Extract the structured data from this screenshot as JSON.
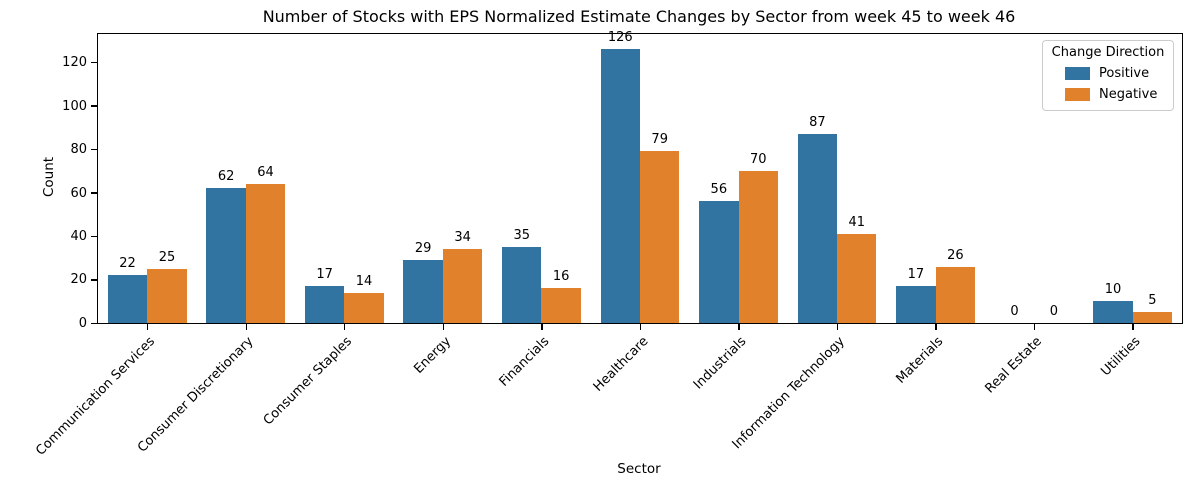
{
  "chart_data": {
    "type": "bar",
    "title": "Number of Stocks with EPS Normalized Estimate Changes by Sector from week 45 to week 46",
    "xlabel": "Sector",
    "ylabel": "Count",
    "ylim": [
      0,
      133
    ],
    "yticks": [
      0,
      20,
      40,
      60,
      80,
      100,
      120
    ],
    "grid": false,
    "bar_labels": true,
    "categories": [
      "Communication Services",
      "Consumer Discretionary",
      "Consumer Staples",
      "Energy",
      "Financials",
      "Healthcare",
      "Industrials",
      "Information Technology",
      "Materials",
      "Real Estate",
      "Utilities"
    ],
    "series": [
      {
        "name": "Positive",
        "color": "#3274a1",
        "values": [
          22,
          62,
          17,
          29,
          35,
          126,
          56,
          87,
          17,
          0,
          10
        ]
      },
      {
        "name": "Negative",
        "color": "#e1812c",
        "values": [
          25,
          64,
          14,
          34,
          16,
          79,
          70,
          41,
          26,
          0,
          5
        ]
      }
    ],
    "legend": {
      "title": "Change Direction",
      "position": "upper right"
    }
  }
}
